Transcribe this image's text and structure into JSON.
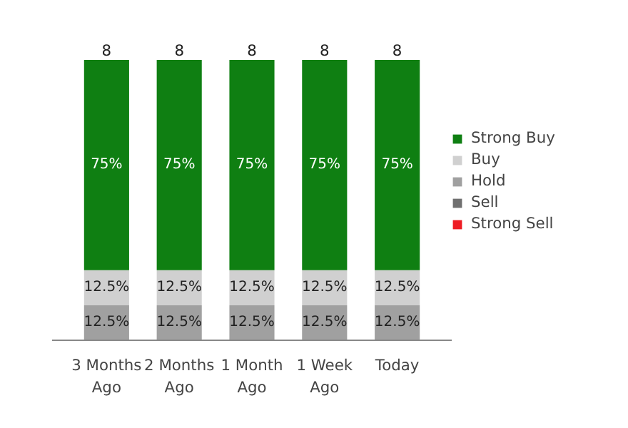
{
  "chart_data": {
    "type": "bar",
    "stacked": true,
    "categories": [
      "3 Months\nAgo",
      "2 Months\nAgo",
      "1 Month\nAgo",
      "1 Week\nAgo",
      "Today"
    ],
    "series": [
      {
        "name": "Strong Sell",
        "color": "#ee1c24",
        "values": [
          0,
          0,
          0,
          0,
          0
        ],
        "value_labels": [
          null,
          null,
          null,
          null,
          null
        ]
      },
      {
        "name": "Sell",
        "color": "#707070",
        "values": [
          0,
          0,
          0,
          0,
          0
        ],
        "value_labels": [
          null,
          null,
          null,
          null,
          null
        ]
      },
      {
        "name": "Hold",
        "color": "#a0a0a0",
        "values": [
          12.5,
          12.5,
          12.5,
          12.5,
          12.5
        ],
        "value_labels": [
          "12.5%",
          "12.5%",
          "12.5%",
          "12.5%",
          "12.5%"
        ]
      },
      {
        "name": "Buy",
        "color": "#d0d0d0",
        "values": [
          12.5,
          12.5,
          12.5,
          12.5,
          12.5
        ],
        "value_labels": [
          "12.5%",
          "12.5%",
          "12.5%",
          "12.5%",
          "12.5%"
        ]
      },
      {
        "name": "Strong Buy",
        "color": "#0f7f12",
        "values": [
          75,
          75,
          75,
          75,
          75
        ],
        "value_labels": [
          "75%",
          "75%",
          "75%",
          "75%",
          "75%"
        ]
      }
    ],
    "annotations": [
      {
        "text": "8",
        "x": "3 Months\nAgo",
        "y": 100
      },
      {
        "text": "8",
        "x": "2 Months\nAgo",
        "y": 100
      },
      {
        "text": "8",
        "x": "1 Month\nAgo",
        "y": 100
      },
      {
        "text": "8",
        "x": "1 Week\nAgo",
        "y": 100
      },
      {
        "text": "8",
        "x": "Today",
        "y": 100
      }
    ],
    "legend": "right",
    "grid": false
  }
}
